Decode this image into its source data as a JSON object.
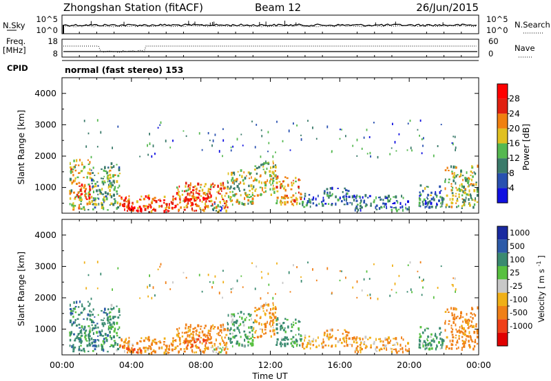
{
  "chart_data": [
    {
      "type": "heatmap",
      "title": "Zhongshan Station (fitACF)",
      "beam": "Beam 12",
      "date": "26/Jun/2015",
      "panels": [
        {
          "name": "N.Sky / N.Search",
          "left_label": "N.Sky",
          "right_label": "N.Search",
          "left_ticks": [
            "10^5",
            "10^0"
          ],
          "right_ticks": [
            "10^5",
            "10^0"
          ]
        },
        {
          "name": "Freq. [MHz] / Nave",
          "left_label_top": "Freq.",
          "left_label_unit": "[MHz]",
          "right_label": "Nave",
          "left_ticks": [
            "18",
            "8"
          ],
          "right_ticks": [
            "60",
            "0"
          ]
        },
        {
          "name": "CPID",
          "label": "CPID",
          "value": "normal (fast stereo) 153"
        },
        {
          "name": "Power",
          "ylabel": "Slant Range [km]",
          "yticks": [
            "1000",
            "2000",
            "3000",
            "4000"
          ],
          "ylim": [
            180,
            4500
          ],
          "colorbar_label": "Power [dB]",
          "colorbar_ticks": [
            "4",
            "8",
            "12",
            "16",
            "20",
            "24",
            "28"
          ],
          "colorbar_range": [
            0,
            32
          ],
          "colorbar_colors": [
            "#1010e0",
            "#2850b0",
            "#3a7a6a",
            "#55b850",
            "#e0c020",
            "#f08010",
            "#e02010",
            "#ff0000"
          ]
        },
        {
          "name": "Velocity",
          "ylabel": "Slant Range [km]",
          "yticks": [
            "1000",
            "2000",
            "3000",
            "4000"
          ],
          "ylim": [
            180,
            4500
          ],
          "colorbar_label": "Velocity [m s^-1]",
          "colorbar_label_unit_main": "m s",
          "colorbar_label_unit_exp": "-1",
          "colorbar_label_main": "Velocity",
          "colorbar_ticks": [
            "1000",
            "500",
            "100",
            "25",
            "-25",
            "-100",
            "-500",
            "-1000"
          ],
          "colorbar_colors": [
            "#1a2aa0",
            "#2c5aa8",
            "#3a8a70",
            "#58c040",
            "#c8c8c8",
            "#f0b018",
            "#f08018",
            "#f04018",
            "#e00000"
          ]
        }
      ],
      "xlabel": "Time UT",
      "xticks": [
        "00:00",
        "04:00",
        "08:00",
        "12:00",
        "16:00",
        "20:00",
        "00:00"
      ],
      "xlim_hours": [
        0,
        24
      ],
      "echo_regions": [
        {
          "t": [
            0.4,
            1.6
          ],
          "r": [
            250,
            1850
          ],
          "power": 18,
          "vel": 320
        },
        {
          "t": [
            1.0,
            1.6
          ],
          "r": [
            600,
            1100
          ],
          "power": 29,
          "vel": 150
        },
        {
          "t": [
            1.6,
            2.6
          ],
          "r": [
            250,
            1600
          ],
          "power": 12,
          "vel": 350
        },
        {
          "t": [
            2.6,
            3.3
          ],
          "r": [
            250,
            1800
          ],
          "power": 14,
          "vel": 120
        },
        {
          "t": [
            3.3,
            6.5
          ],
          "r": [
            180,
            700
          ],
          "power": 24,
          "vel": -160
        },
        {
          "t": [
            3.4,
            5.0
          ],
          "r": [
            180,
            450
          ],
          "power": 30,
          "vel": -380
        },
        {
          "t": [
            6.5,
            9.5
          ],
          "r": [
            200,
            1100
          ],
          "power": 22,
          "vel": -220
        },
        {
          "t": [
            7.0,
            8.5
          ],
          "r": [
            350,
            800
          ],
          "power": 29,
          "vel": -480
        },
        {
          "t": [
            8.5,
            9.5
          ],
          "r": [
            180,
            450
          ],
          "power": 10,
          "vel": 15
        },
        {
          "t": [
            9.5,
            11.0
          ],
          "r": [
            400,
            1500
          ],
          "power": 16,
          "vel": 110
        },
        {
          "t": [
            11.0,
            12.3
          ],
          "r": [
            700,
            1800
          ],
          "power": 17,
          "vel": -120
        },
        {
          "t": [
            12.3,
            13.8
          ],
          "r": [
            400,
            1300
          ],
          "power": 20,
          "vel": 160
        },
        {
          "t": [
            13.8,
            15.0
          ],
          "r": [
            350,
            800
          ],
          "power": 9,
          "vel": -60
        },
        {
          "t": [
            15.0,
            16.5
          ],
          "r": [
            400,
            950
          ],
          "power": 7,
          "vel": -140
        },
        {
          "t": [
            16.5,
            20.0
          ],
          "r": [
            200,
            700
          ],
          "power": 9,
          "vel": -90
        },
        {
          "t": [
            20.5,
            22.0
          ],
          "r": [
            300,
            1050
          ],
          "power": 10,
          "vel": 140
        },
        {
          "t": [
            22.0,
            23.9
          ],
          "r": [
            300,
            1650
          ],
          "power": 15,
          "vel": -260
        }
      ]
    }
  ]
}
